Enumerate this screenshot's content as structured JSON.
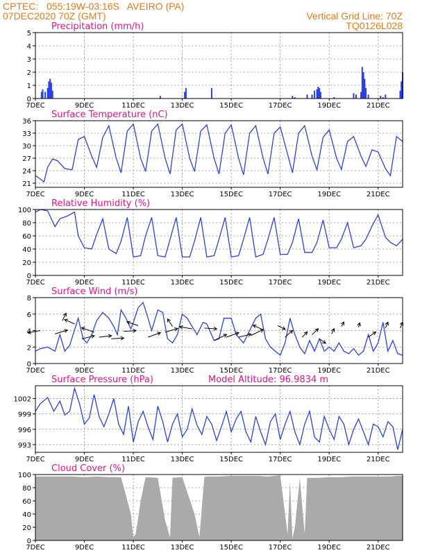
{
  "header": {
    "line1": "CPTEC:   055:19W-03:16S   AVEIRO (PA)",
    "line2": "07DEC2020 70Z (GMT)",
    "right1": "Vertical Grid Line: 70Z",
    "right2": "TQ0126L028",
    "altitude": "Model Altitude: 96.9834 m",
    "header_color": "#e07a1a",
    "title_color": "#e8108a",
    "line_color": "#2a3fe6",
    "cloud_color": "#aaaaaa"
  },
  "x_axis": {
    "labels": [
      "7DEC",
      "9DEC",
      "11DEC",
      "13DEC",
      "15DEC",
      "17DEC",
      "19DEC",
      "21DEC"
    ],
    "label_days": [
      0,
      2,
      4,
      6,
      8,
      10,
      12,
      14
    ],
    "range_days": [
      0,
      15.0
    ]
  },
  "chart_data": [
    {
      "id": "precip",
      "type": "bar",
      "title": "Precipitation (mm/h)",
      "ylim": [
        0,
        5
      ],
      "yticks": [
        "0",
        "1",
        "2",
        "3",
        "4",
        "5"
      ],
      "x": [
        0.25,
        0.3,
        0.4,
        0.5,
        0.55,
        0.6,
        0.65,
        0.7,
        5.1,
        6.1,
        6.15,
        7.2,
        10.5,
        10.6,
        11.1,
        11.3,
        11.4,
        11.5,
        11.55,
        11.6,
        11.65,
        12.2,
        13.0,
        13.1,
        13.3,
        13.35,
        13.4,
        13.45,
        13.5,
        13.6,
        14.1,
        14.2,
        14.3,
        14.9,
        14.95,
        15.0
      ],
      "values": [
        0.5,
        0.7,
        0.5,
        0.8,
        1.3,
        1.5,
        1.2,
        0.6,
        0.2,
        0.5,
        0.8,
        0.8,
        0.2,
        0.1,
        0.3,
        0.3,
        0.6,
        0.7,
        0.9,
        0.8,
        0.5,
        0.1,
        0.4,
        0.3,
        0.5,
        2.4,
        2.0,
        1.5,
        0.8,
        0.3,
        0.2,
        0.1,
        0.3,
        0.6,
        1.3,
        2.0
      ]
    },
    {
      "id": "temp",
      "type": "line",
      "title": "Surface Temperature (nC)",
      "ylim": [
        20,
        36
      ],
      "yticks": [
        "21",
        "24",
        "27",
        "30",
        "33",
        "36"
      ],
      "x": [
        0,
        0.2,
        0.35,
        0.5,
        0.7,
        0.9,
        1.2,
        1.5,
        1.75,
        2,
        2.3,
        2.5,
        2.75,
        3,
        3.3,
        3.5,
        3.75,
        4,
        4.3,
        4.5,
        4.75,
        5,
        5.3,
        5.5,
        5.75,
        6,
        6.3,
        6.5,
        6.75,
        7,
        7.3,
        7.5,
        7.75,
        8,
        8.3,
        8.5,
        8.75,
        9,
        9.3,
        9.5,
        9.75,
        10,
        10.3,
        10.5,
        10.75,
        11,
        11.3,
        11.5,
        11.75,
        12,
        12.3,
        12.5,
        12.75,
        13,
        13.3,
        13.5,
        13.75,
        14,
        14.3,
        14.5,
        14.75,
        15
      ],
      "values": [
        22.8,
        22,
        21.3,
        24.8,
        26.8,
        26.4,
        24.5,
        24.2,
        31.5,
        32.2,
        27.5,
        24.8,
        32,
        34.8,
        27,
        23.5,
        33.5,
        35.2,
        27,
        23.8,
        33.5,
        35.2,
        27,
        23.2,
        33.8,
        35.2,
        27,
        23.8,
        33.5,
        35,
        27,
        23.2,
        33,
        35,
        27,
        23,
        33,
        34.8,
        27,
        23.2,
        33,
        34.5,
        28,
        23.5,
        33,
        34.8,
        27.5,
        24.2,
        32,
        33.8,
        27,
        24.3,
        31,
        32.2,
        27.5,
        25,
        29,
        28.5,
        24.5,
        22.8,
        32.2,
        31
      ]
    },
    {
      "id": "rh",
      "type": "line",
      "title": "Relative Humidity (%)",
      "ylim": [
        0,
        100
      ],
      "yticks": [
        "0",
        "20",
        "40",
        "60",
        "80",
        "100"
      ],
      "x": [
        0,
        0.2,
        0.5,
        0.8,
        1.0,
        1.3,
        1.6,
        1.75,
        2,
        2.3,
        2.5,
        2.75,
        3,
        3.3,
        3.5,
        3.75,
        4,
        4.3,
        4.5,
        4.75,
        5,
        5.3,
        5.5,
        5.75,
        6,
        6.3,
        6.5,
        6.75,
        7,
        7.3,
        7.5,
        7.75,
        8,
        8.3,
        8.5,
        8.75,
        9,
        9.3,
        9.5,
        9.75,
        10,
        10.3,
        10.5,
        10.75,
        11,
        11.3,
        11.5,
        11.75,
        12,
        12.3,
        12.5,
        12.75,
        13,
        13.3,
        13.5,
        13.75,
        14,
        14.3,
        14.5,
        14.75,
        15
      ],
      "values": [
        96,
        100,
        98,
        74,
        86,
        90,
        96,
        60,
        42,
        40,
        62,
        86,
        40,
        33,
        52,
        88,
        28,
        30,
        60,
        88,
        30,
        28,
        55,
        88,
        28,
        28,
        52,
        88,
        28,
        30,
        55,
        88,
        28,
        30,
        55,
        88,
        28,
        32,
        55,
        88,
        32,
        32,
        50,
        86,
        35,
        35,
        50,
        84,
        42,
        42,
        55,
        80,
        42,
        45,
        55,
        75,
        92,
        58,
        50,
        45,
        55
      ]
    },
    {
      "id": "wind",
      "type": "line",
      "title": "Surface Wind (m/s)",
      "ylim": [
        0,
        8
      ],
      "yticks": [
        "0",
        "2",
        "4",
        "6",
        "8"
      ],
      "x": [
        0,
        0.2,
        0.5,
        0.8,
        1.0,
        1.2,
        1.4,
        1.75,
        1.95,
        2.1,
        2.3,
        2.5,
        2.75,
        3.0,
        3.2,
        3.35,
        3.5,
        3.7,
        3.9,
        4.0,
        4.2,
        4.4,
        4.6,
        4.75,
        5.0,
        5.2,
        5.4,
        5.6,
        5.8,
        6.0,
        6.2,
        6.4,
        6.6,
        6.85,
        7.0,
        7.3,
        7.5,
        7.7,
        8.0,
        8.2,
        8.5,
        8.75,
        9.0,
        9.2,
        9.4,
        9.6,
        9.8,
        10.0,
        10.2,
        10.4,
        10.6,
        10.8,
        11.0,
        11.2,
        11.4,
        11.6,
        11.8,
        12.0,
        12.2,
        12.4,
        12.6,
        12.8,
        13.0,
        13.2,
        13.4,
        13.6,
        13.8,
        14.0,
        14.2,
        14.4,
        14.6,
        14.8,
        15.0
      ],
      "values": [
        1.5,
        1.8,
        2.0,
        1.5,
        3.5,
        1.5,
        2.2,
        5.5,
        3.0,
        2.5,
        3.5,
        5.2,
        6.2,
        5.5,
        4.5,
        3.5,
        6.5,
        5.5,
        4.2,
        5.0,
        6.8,
        7.4,
        5.5,
        4.0,
        6.5,
        6.2,
        3.0,
        2.5,
        3.5,
        6.0,
        5.5,
        4.5,
        3.5,
        5.0,
        4.8,
        2.8,
        3.0,
        5.5,
        5.5,
        3.5,
        2.5,
        4.0,
        5.5,
        6.0,
        3.0,
        2.0,
        1.5,
        1.0,
        2.5,
        5.5,
        3.5,
        2.0,
        1.2,
        2.8,
        1.5,
        3.0,
        1.5,
        2.0,
        1.5,
        2.5,
        1.5,
        1.2,
        1.8,
        1.0,
        1.5,
        3.5,
        1.5,
        2.5,
        5.0,
        1.5,
        2.8,
        1.2,
        1.0
      ]
    },
    {
      "id": "pressure",
      "type": "line",
      "title": "Surface Pressure (hPa)",
      "ylim": [
        991.5,
        1004.5
      ],
      "yticks": [
        "993",
        "996",
        "999",
        "1002"
      ],
      "x": [
        0,
        0.2,
        0.5,
        0.75,
        1.0,
        1.2,
        1.4,
        1.6,
        1.8,
        2.0,
        2.2,
        2.4,
        2.6,
        2.8,
        3.0,
        3.2,
        3.4,
        3.6,
        3.8,
        4.0,
        4.2,
        4.4,
        4.6,
        4.8,
        5.0,
        5.2,
        5.4,
        5.6,
        5.8,
        6.0,
        6.2,
        6.4,
        6.6,
        6.8,
        7.0,
        7.2,
        7.4,
        7.6,
        7.8,
        8.0,
        8.2,
        8.4,
        8.6,
        8.8,
        9.0,
        9.2,
        9.4,
        9.6,
        9.8,
        10.0,
        10.2,
        10.4,
        10.6,
        10.8,
        11.0,
        11.2,
        11.4,
        11.6,
        11.8,
        12.0,
        12.2,
        12.4,
        12.6,
        12.8,
        13.0,
        13.2,
        13.4,
        13.6,
        13.8,
        14.0,
        14.2,
        14.4,
        14.6,
        14.8,
        15.0
      ],
      "values": [
        999.5,
        1001.0,
        1002.2,
        999.5,
        1001.5,
        998.8,
        999.5,
        1004.0,
        1001.0,
        997.0,
        998.2,
        1002.8,
        998.5,
        996.5,
        999.0,
        1002.0,
        997.0,
        995.0,
        1000.5,
        993.5,
        997.5,
        999.5,
        996.5,
        994.0,
        1000.5,
        997.5,
        993.5,
        997.0,
        999.0,
        994.5,
        996.0,
        1000.0,
        996.8,
        995.0,
        998.5,
        997.0,
        993.8,
        996.5,
        999.5,
        995.5,
        998.0,
        999.5,
        995.5,
        993.5,
        998.5,
        995.5,
        993.0,
        997.5,
        999.0,
        994.0,
        997.0,
        999.5,
        995.5,
        993.0,
        997.0,
        999.5,
        994.5,
        993.5,
        998.5,
        996.0,
        994.0,
        998.5,
        997.0,
        993.0,
        996.0,
        998.0,
        995.5,
        993.0,
        997.0,
        996.5,
        994.5,
        997.5,
        996.5,
        992.0,
        996.0
      ]
    },
    {
      "id": "cloud",
      "type": "bar",
      "title": "Cloud Cover (%)",
      "ylim": [
        0,
        100
      ],
      "yticks": [
        "0",
        "20",
        "40",
        "60",
        "80",
        "100"
      ],
      "x": [
        0,
        0.5,
        1.0,
        1.5,
        2.0,
        2.5,
        3.0,
        3.5,
        3.9,
        4.0,
        4.1,
        4.3,
        4.5,
        5.0,
        5.3,
        5.5,
        5.6,
        6.0,
        6.5,
        6.7,
        6.9,
        7.0,
        7.5,
        8.0,
        8.5,
        9.0,
        9.5,
        10.0,
        10.2,
        10.3,
        10.4,
        10.5,
        10.6,
        10.8,
        11.0,
        11.1,
        11.5,
        12.0,
        12.5,
        13.0,
        13.5,
        14.0,
        14.5,
        14.8,
        15.0
      ],
      "values": [
        97,
        97,
        97,
        97,
        96,
        97,
        96,
        96,
        40,
        5,
        10,
        60,
        96,
        95,
        30,
        5,
        95,
        96,
        40,
        5,
        96,
        97,
        97,
        98,
        98,
        98,
        97,
        99,
        40,
        10,
        90,
        3,
        20,
        95,
        10,
        95,
        95,
        96,
        96,
        97,
        97,
        97,
        97,
        98,
        98
      ]
    }
  ]
}
